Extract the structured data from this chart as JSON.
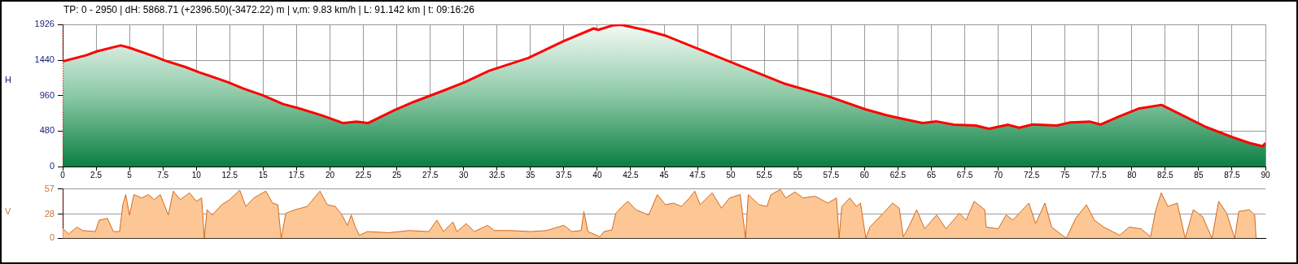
{
  "chart_data": [
    {
      "type": "area",
      "title": "TP: 0 - 2950 | dH: 5868.71  (+2396.50)(-3472.22) m | v,m: 9.83 km/h | L: 91.142 km | t: 09:16:26",
      "ylabel": "H",
      "xlim": [
        0,
        90
      ],
      "ylim": [
        0,
        1926
      ],
      "xticks": [
        0,
        2.5,
        5,
        7.5,
        10,
        12.5,
        15,
        17.5,
        20,
        22.5,
        25,
        27.5,
        30,
        32.5,
        35,
        37.5,
        40,
        42.5,
        45,
        47.5,
        50,
        52.5,
        55,
        57.5,
        60,
        62.5,
        65,
        67.5,
        70,
        72.5,
        75,
        77.5,
        80,
        82.5,
        85,
        87.5,
        90
      ],
      "yticks": [
        0,
        480,
        960,
        1440,
        1926
      ],
      "grid": true,
      "legend": false,
      "marker": "none",
      "line_style": "solid",
      "ref_lines": [
        {
          "axis": "x",
          "value": 0,
          "color": "#ff0000",
          "line_style": "dotted"
        }
      ],
      "series": [
        {
          "color": "#ff0000",
          "x": [
            0,
            1.74,
            2.61,
            4.35,
            4.99,
            6.94,
            7.61,
            9.14,
            10.23,
            12.4,
            13.46,
            14.98,
            16.5,
            17.6,
            19.37,
            21.0,
            21.99,
            22.84,
            24.79,
            26.3,
            28.5,
            30.06,
            31.91,
            34.84,
            37.45,
            39.74,
            40.07,
            41.15,
            41.78,
            43.54,
            45.07,
            47.44,
            49.39,
            51.16,
            53.96,
            57.25,
            60.05,
            61.57,
            62.42,
            64.35,
            65.35,
            66.69,
            68.31,
            69.31,
            70.75,
            71.56,
            72.58,
            74.4,
            75.4,
            76.84,
            77.65,
            79.05,
            80.49,
            82.22,
            83.54,
            85.57,
            87.58,
            88.8,
            89.8,
            90
          ],
          "values": [
            1425,
            1506,
            1563,
            1641,
            1610,
            1487,
            1438,
            1351,
            1276,
            1141,
            1061,
            964,
            846,
            792,
            695,
            588,
            609,
            588,
            760,
            878,
            1029,
            1141,
            1298,
            1470,
            1696,
            1871,
            1852,
            1911,
            1920,
            1852,
            1775,
            1602,
            1459,
            1330,
            1126,
            954,
            776,
            699,
            663,
            588,
            612,
            566,
            555,
            512,
            566,
            526,
            569,
            555,
            598,
            609,
            569,
            677,
            784,
            835,
            717,
            534,
            394,
            319,
            275,
            319
          ]
        }
      ]
    },
    {
      "type": "area",
      "ylabel": "V",
      "xlim": [
        0,
        90
      ],
      "ylim": [
        0,
        57
      ],
      "yticks": [
        0,
        28,
        57
      ],
      "grid": "y",
      "legend": false,
      "marker": "none",
      "line_style": "solid",
      "tick_labels": "y",
      "ref_lines": [
        {
          "axis": "x",
          "value": 0,
          "color": "#ff0000",
          "line_style": "dotted"
        }
      ],
      "series": [
        {
          "color": "#d2691e",
          "x": [
            0,
            0.46,
            1.07,
            1.5,
            2.44,
            2.74,
            3.35,
            3.8,
            4.26,
            4.5,
            4.72,
            5.0,
            5.33,
            5.94,
            6.4,
            6.85,
            7.3,
            7.9,
            8.28,
            8.8,
            9.5,
            10.0,
            10.4,
            10.6,
            10.8,
            11.2,
            11.9,
            12.5,
            13.25,
            13.7,
            14.3,
            15.2,
            15.7,
            16.1,
            16.35,
            16.7,
            17.4,
            18.3,
            19.25,
            19.8,
            20.4,
            20.9,
            21.3,
            21.6,
            21.9,
            22.2,
            22.8,
            24.4,
            25.9,
            27.4,
            28.0,
            28.5,
            29.2,
            29.5,
            30.2,
            30.8,
            31.8,
            32.3,
            33.5,
            35.0,
            36.2,
            37.5,
            38.1,
            38.8,
            39.0,
            39.3,
            40.2,
            40.5,
            41.1,
            41.4,
            42.0,
            42.3,
            42.9,
            43.85,
            44.5,
            45.1,
            45.7,
            46.3,
            46.9,
            47.3,
            47.7,
            48.6,
            49.3,
            49.9,
            50.7,
            51.1,
            51.3,
            52.1,
            52.7,
            53.0,
            53.7,
            54.1,
            54.8,
            55.4,
            56.3,
            57.25,
            57.9,
            58.1,
            58.3,
            58.9,
            59.4,
            59.7,
            60.1,
            60.4,
            61.4,
            62.1,
            62.6,
            62.9,
            63.3,
            63.9,
            64.5,
            65.4,
            66.1,
            67.1,
            67.6,
            68.2,
            69.0,
            69.1,
            70.0,
            70.6,
            71.1,
            71.7,
            72.3,
            72.8,
            73.5,
            74.0,
            75.1,
            75.8,
            76.6,
            77.2,
            77.9,
            79.1,
            79.8,
            80.7,
            81.4,
            81.8,
            82.2,
            82.7,
            83.4,
            84.0,
            84.6,
            85.3,
            86.0,
            86.5,
            87.1,
            87.7,
            88.0,
            88.8,
            89.2,
            89.3
          ],
          "values": [
            11.4,
            5.1,
            13,
            9,
            7.8,
            21,
            23,
            7.8,
            7.8,
            38.8,
            50.5,
            27,
            50.5,
            46.6,
            50.5,
            44.7,
            50.5,
            27,
            54.5,
            44.7,
            52.5,
            42.7,
            46.6,
            0,
            33,
            27,
            38.8,
            44.7,
            55.6,
            36.8,
            46.6,
            54.5,
            40.7,
            38.8,
            0,
            29,
            33,
            36.8,
            54.5,
            38.8,
            36.8,
            27,
            15,
            27,
            13,
            3.5,
            7.8,
            6.5,
            9,
            7.8,
            21,
            7.8,
            19,
            7.8,
            17,
            7.8,
            15,
            9,
            9,
            7.8,
            9,
            15,
            7.8,
            9,
            31,
            7.8,
            1.8,
            7.8,
            9.8,
            29,
            38.8,
            42.7,
            33,
            27,
            50.5,
            38.8,
            40.7,
            36.8,
            46.6,
            54.5,
            38.8,
            52.5,
            34.8,
            46.6,
            50.5,
            0,
            50.5,
            38.8,
            36.8,
            50.5,
            56.4,
            46.6,
            53.5,
            46.6,
            48.6,
            40.7,
            46.6,
            0,
            36.8,
            46.6,
            36.8,
            40.7,
            0,
            13,
            29,
            40.7,
            34.8,
            1.8,
            13,
            33,
            11,
            27,
            11,
            29,
            21,
            42.7,
            33,
            13,
            11,
            27,
            21,
            31,
            40.7,
            17,
            40.7,
            13,
            0,
            23,
            38.8,
            21,
            13,
            3.5,
            13,
            11,
            1.8,
            33,
            52.5,
            36.8,
            40.7,
            0,
            33,
            25,
            0,
            42.7,
            29,
            0,
            31,
            33,
            27,
            0
          ]
        }
      ]
    }
  ]
}
